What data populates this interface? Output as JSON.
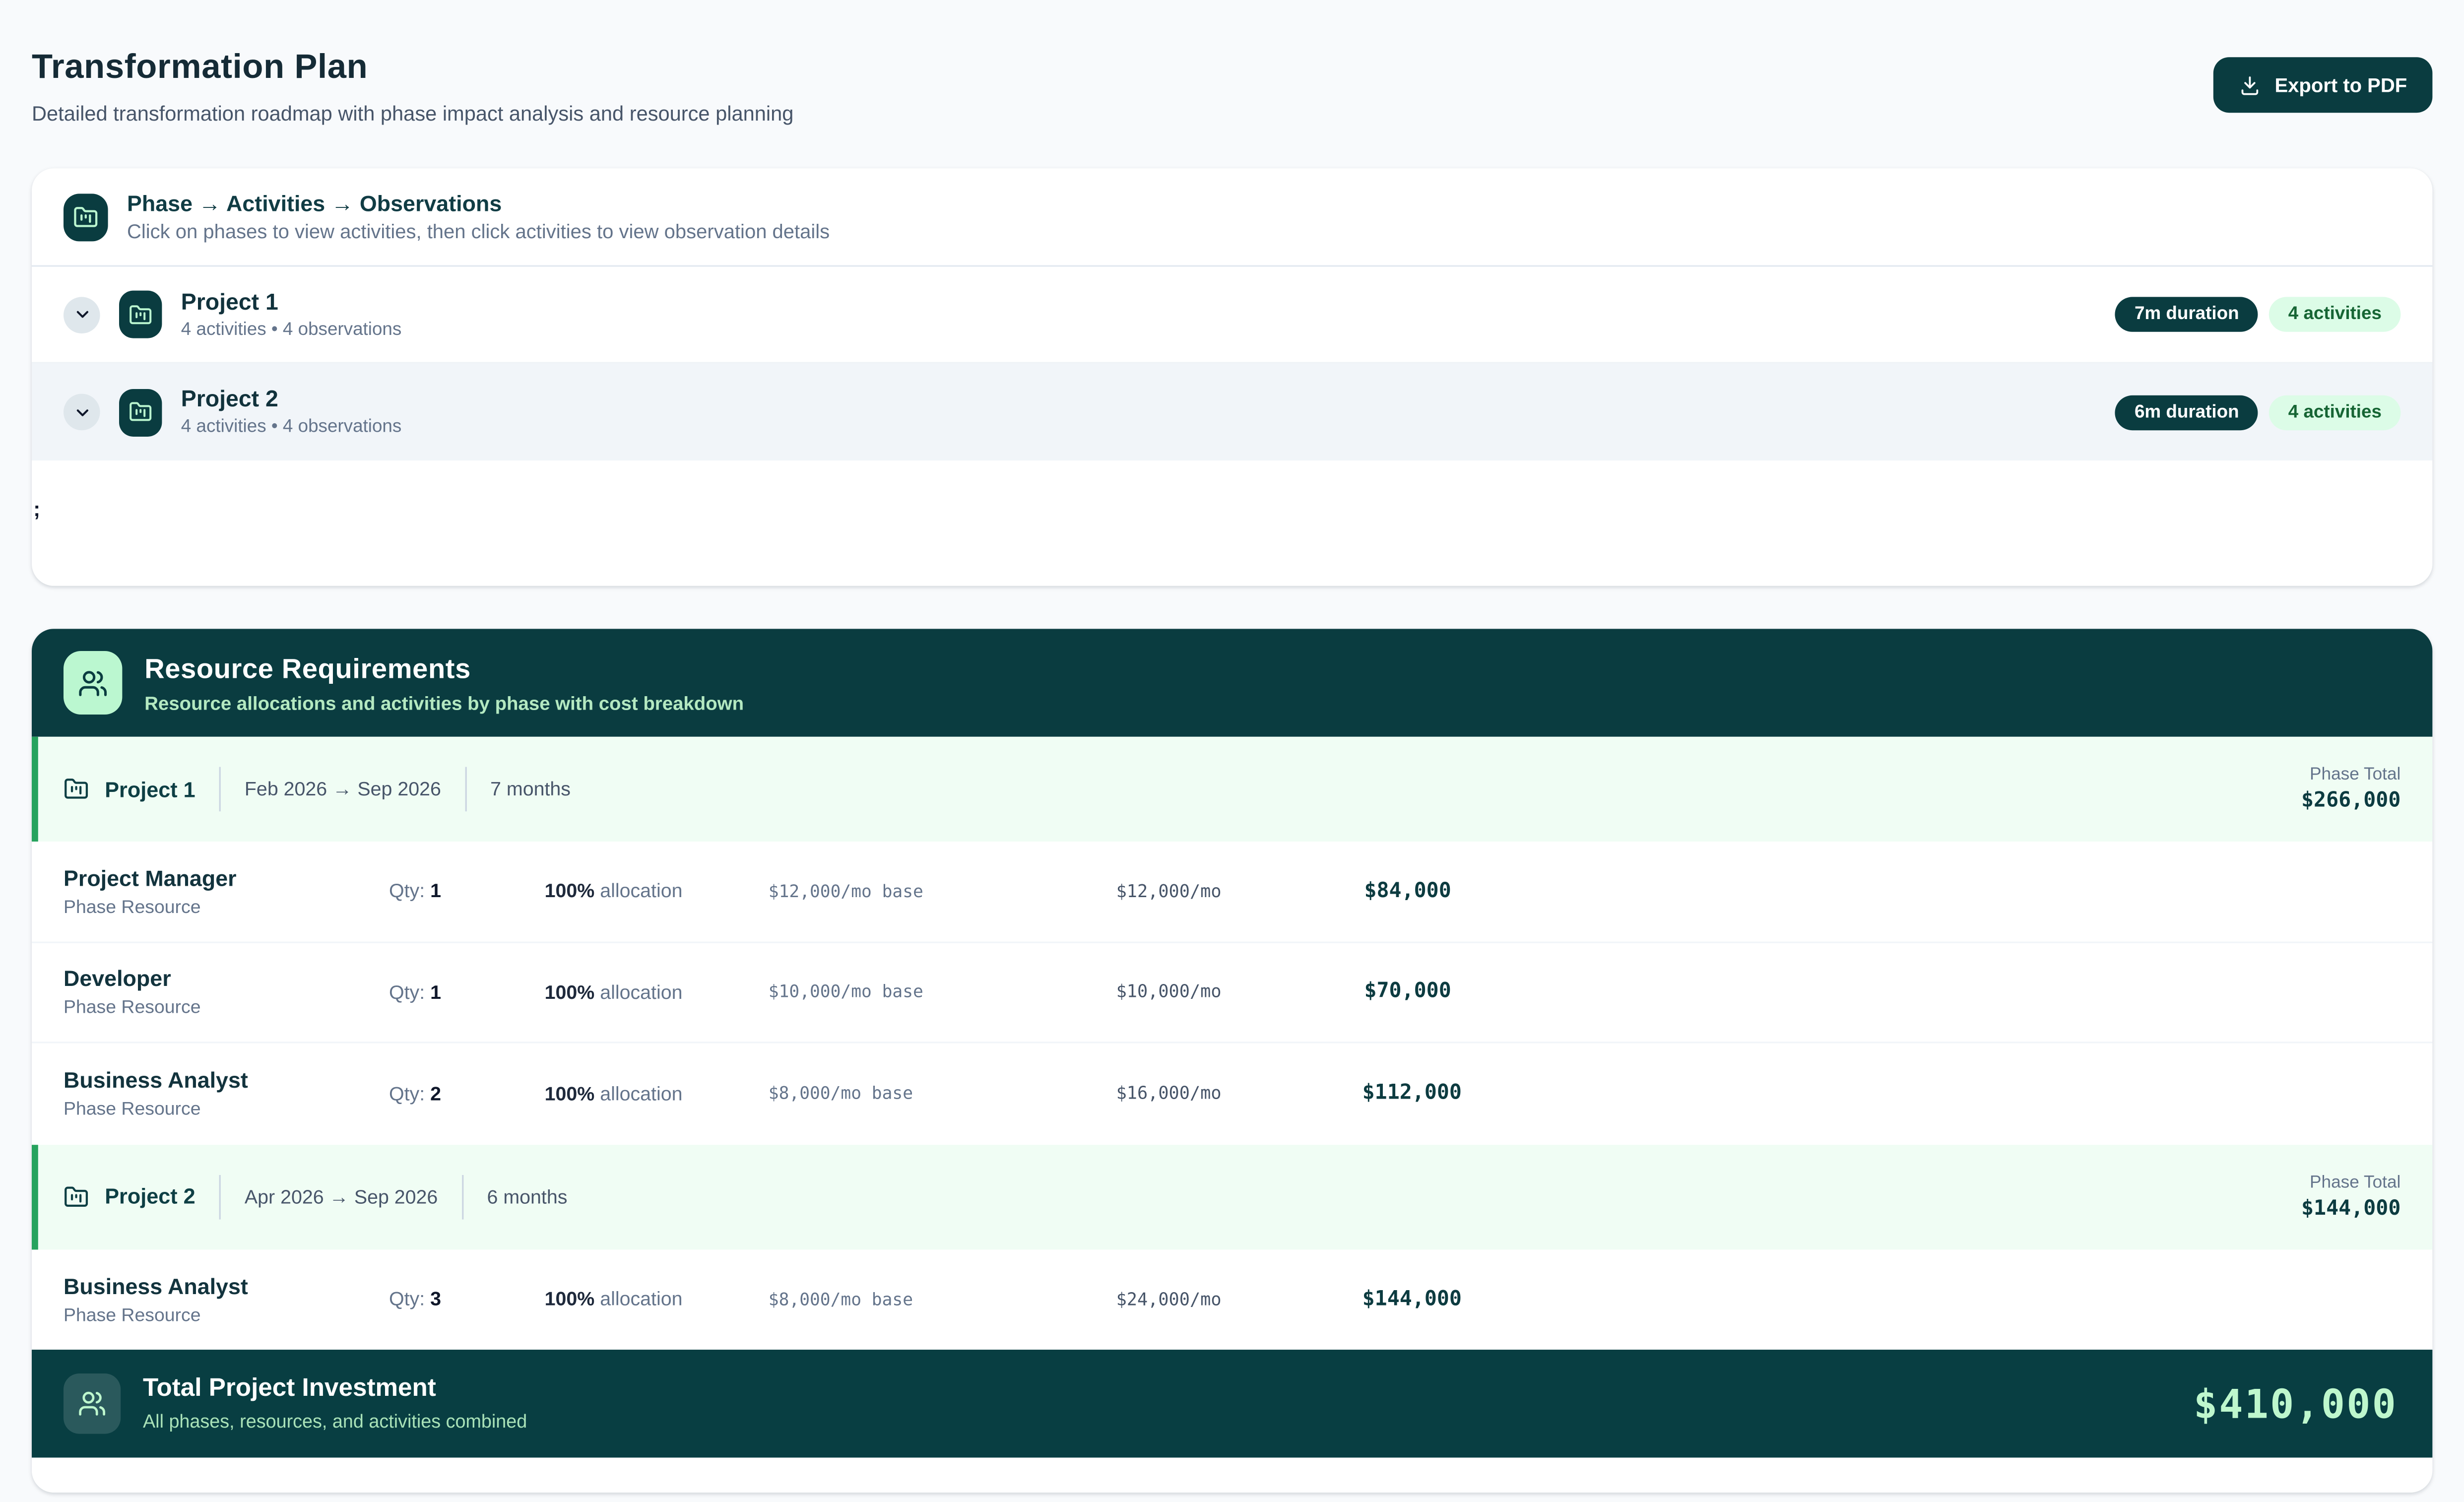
{
  "page": {
    "title": "Transformation Plan",
    "subtitle": "Detailed transformation roadmap with phase impact analysis and resource planning",
    "export_button": "Export to PDF"
  },
  "phase_explorer": {
    "title": "Phase → Activities → Observations",
    "subtitle": "Click on phases to view activities, then click activities to view observation details",
    "stray_text": ";",
    "phases": [
      {
        "name": "Project 1",
        "meta": "4 activities • 4 observations",
        "duration_badge": "7m duration",
        "activities_badge": "4 activities"
      },
      {
        "name": "Project 2",
        "meta": "4 activities • 4 observations",
        "duration_badge": "6m duration",
        "activities_badge": "4 activities"
      }
    ]
  },
  "resource_requirements": {
    "title": "Resource Requirements",
    "subtitle": "Resource allocations and activities by phase with cost breakdown",
    "phase_total_label": "Phase Total",
    "phases": [
      {
        "name": "Project 1",
        "date_range": "Feb 2026 → Sep 2026",
        "duration": "7 months",
        "phase_total": "$266,000",
        "resources": [
          {
            "role": "Project Manager",
            "type": "Phase Resource",
            "qty_label": "Qty:",
            "qty": "1",
            "alloc": "100%",
            "alloc_label": "allocation",
            "base_rate": "$12,000/mo base",
            "monthly": "$12,000/mo",
            "total": "$84,000"
          },
          {
            "role": "Developer",
            "type": "Phase Resource",
            "qty_label": "Qty:",
            "qty": "1",
            "alloc": "100%",
            "alloc_label": "allocation",
            "base_rate": "$10,000/mo base",
            "monthly": "$10,000/mo",
            "total": "$70,000"
          },
          {
            "role": "Business Analyst",
            "type": "Phase Resource",
            "qty_label": "Qty:",
            "qty": "2",
            "alloc": "100%",
            "alloc_label": "allocation",
            "base_rate": "$8,000/mo base",
            "monthly": "$16,000/mo",
            "total": "$112,000"
          }
        ]
      },
      {
        "name": "Project 2",
        "date_range": "Apr 2026 → Sep 2026",
        "duration": "6 months",
        "phase_total": "$144,000",
        "resources": [
          {
            "role": "Business Analyst",
            "type": "Phase Resource",
            "qty_label": "Qty:",
            "qty": "3",
            "alloc": "100%",
            "alloc_label": "allocation",
            "base_rate": "$8,000/mo base",
            "monthly": "$24,000/mo",
            "total": "$144,000"
          }
        ]
      }
    ],
    "footer": {
      "title": "Total Project Investment",
      "subtitle": "All phases, resources, and activities combined",
      "total": "$410,000"
    }
  },
  "colors": {
    "brand_dark_teal": "#0a3c40",
    "light_green": "#bbf7d0",
    "green_pill_bg": "#dcfce7",
    "green_pill_text": "#166534",
    "phase_row_bg": "#f0fdf4",
    "phase_row_border": "#27a35e",
    "page_bg": "#f8fafc"
  },
  "icons": {
    "export": "download-icon",
    "phase": "folder-kanban-icon",
    "resources": "users-icon",
    "expand": "chevron-down-icon"
  }
}
